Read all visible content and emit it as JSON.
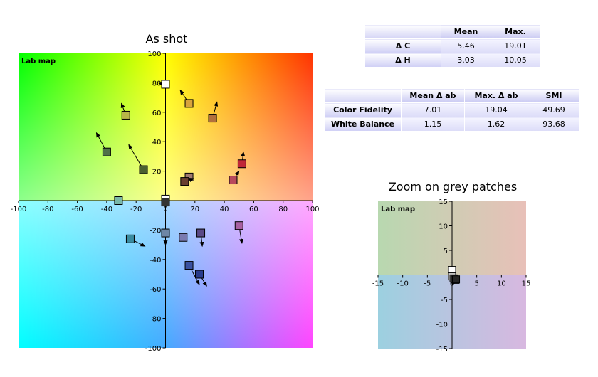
{
  "titles": {
    "main": "As shot",
    "zoom": "Zoom on grey patches"
  },
  "map_labels": {
    "main": "Lab map",
    "zoom": "Lab map"
  },
  "table_delta": {
    "headers": [
      "",
      "Mean",
      "Max."
    ],
    "rows": [
      {
        "label": "Δ C",
        "mean": "5.46",
        "max": "19.01"
      },
      {
        "label": "Δ H",
        "mean": "3.03",
        "max": "10.05"
      }
    ]
  },
  "table_fidelity": {
    "headers": [
      "",
      "Mean Δ ab",
      "Max. Δ ab",
      "SMI"
    ],
    "rows": [
      {
        "label": "Color Fidelity",
        "mean": "7.01",
        "max": "19.04",
        "smi": "49.69"
      },
      {
        "label": "White Balance",
        "mean": "1.15",
        "max": "1.62",
        "smi": "93.68"
      }
    ]
  },
  "chart_data": [
    {
      "type": "scatter",
      "title": "As shot",
      "label": "Lab map",
      "xlim": [
        -100,
        100
      ],
      "ylim": [
        -100,
        100
      ],
      "xticks": [
        -100,
        -80,
        -60,
        -40,
        -20,
        0,
        20,
        40,
        60,
        80,
        100
      ],
      "yticks": [
        100,
        80,
        60,
        40,
        20,
        0,
        -20,
        -40,
        -60,
        -80,
        -100
      ],
      "points": [
        {
          "a": 0,
          "b": 79,
          "ta": -5,
          "tb": 80,
          "color": "#ffffff"
        },
        {
          "a": 16,
          "b": 66,
          "ta": 10,
          "tb": 75,
          "color": "#d8a43c"
        },
        {
          "a": -27,
          "b": 58,
          "ta": -30,
          "tb": 66,
          "color": "#b8b648"
        },
        {
          "a": 32,
          "b": 56,
          "ta": 35,
          "tb": 67,
          "color": "#b2703c"
        },
        {
          "a": -40,
          "b": 33,
          "ta": -47,
          "tb": 46,
          "color": "#4f7048"
        },
        {
          "a": -15,
          "b": 21,
          "ta": -25,
          "tb": 38,
          "color": "#4a6030"
        },
        {
          "a": 52,
          "b": 25,
          "ta": 53,
          "tb": 33,
          "color": "#c02838"
        },
        {
          "a": 16,
          "b": 16,
          "ta": 17,
          "tb": 13,
          "color": "#a07a70"
        },
        {
          "a": 13,
          "b": 13,
          "ta": 19,
          "tb": 15,
          "color": "#6a4030"
        },
        {
          "a": 46,
          "b": 14,
          "ta": 50,
          "tb": 20,
          "color": "#b84a5c"
        },
        {
          "a": -32,
          "b": 0,
          "ta": -32,
          "tb": 0,
          "color": "#7ab8a8"
        },
        {
          "a": 0,
          "b": 1,
          "ta": 0,
          "tb": 0,
          "color": "#ffffff"
        },
        {
          "a": 0,
          "b": -1,
          "ta": 0,
          "tb": -3,
          "color": "#333333"
        },
        {
          "a": 0,
          "b": -22,
          "ta": 0,
          "tb": -30,
          "color": "#6e86a6"
        },
        {
          "a": -24,
          "b": -26,
          "ta": -14,
          "tb": -31,
          "color": "#3a8ca0"
        },
        {
          "a": 12,
          "b": -25,
          "ta": 12,
          "tb": -25,
          "color": "#7a7ab0"
        },
        {
          "a": 24,
          "b": -22,
          "ta": 25,
          "tb": -31,
          "color": "#5a4a86"
        },
        {
          "a": 50,
          "b": -17,
          "ta": 52,
          "tb": -29,
          "color": "#a860a0"
        },
        {
          "a": 16,
          "b": -44,
          "ta": 23,
          "tb": -57,
          "color": "#3a52a0"
        },
        {
          "a": 23,
          "b": -50,
          "ta": 28,
          "tb": -58,
          "color": "#283c8c"
        }
      ]
    },
    {
      "type": "scatter",
      "title": "Zoom on grey patches",
      "label": "Lab map",
      "xlim": [
        -15,
        15
      ],
      "ylim": [
        -15,
        15
      ],
      "xticks": [
        -15,
        -10,
        -5,
        0,
        5,
        10,
        15
      ],
      "yticks": [
        15,
        10,
        5,
        0,
        -5,
        -10,
        -15
      ],
      "points": [
        {
          "a": 0,
          "b": 1,
          "ta": 0,
          "tb": 0,
          "color": "#ffffff"
        },
        {
          "a": 0,
          "b": -0.3,
          "ta": 0,
          "tb": -1,
          "color": "#d0d0d0"
        },
        {
          "a": 0.3,
          "b": -0.7,
          "ta": 0,
          "tb": -1.5,
          "color": "#9a9a9a"
        },
        {
          "a": 0.5,
          "b": -0.9,
          "ta": 0,
          "tb": -2,
          "color": "#6a6a6a"
        },
        {
          "a": 0.7,
          "b": -1,
          "ta": 0,
          "tb": -2,
          "color": "#404040"
        },
        {
          "a": 0.8,
          "b": -0.9,
          "ta": 0,
          "tb": -2,
          "color": "#262626"
        }
      ]
    }
  ]
}
